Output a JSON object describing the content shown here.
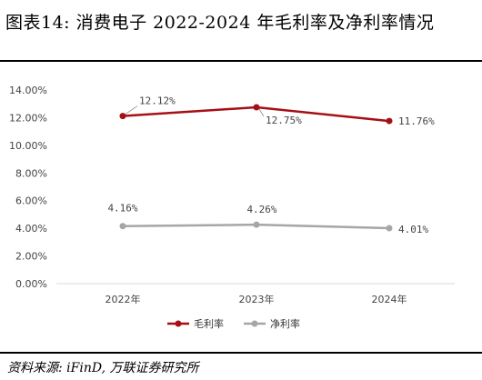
{
  "header": {
    "title": "图表14:  消费电子 2022-2024 年毛利率及净利率情况"
  },
  "footer": {
    "source": "资料来源: iFinD, 万联证券研究所"
  },
  "chart_data": {
    "type": "line",
    "title": "图表14:  消费电子 2022-2024 年毛利率及净利率情况",
    "categories": [
      "2022年",
      "2023年",
      "2024年"
    ],
    "ylim": [
      0,
      14
    ],
    "yticks": [
      "14.00%",
      "12.00%",
      "10.00%",
      "8.00%",
      "6.00%",
      "4.00%",
      "2.00%",
      "0.00%"
    ],
    "ytick_values": [
      14,
      12,
      10,
      8,
      6,
      4,
      2,
      0
    ],
    "grid": false,
    "legend": "bottom-center",
    "series": [
      {
        "name": "毛利率",
        "values": [
          12.12,
          12.75,
          11.76
        ],
        "labels": [
          "12.12%",
          "12.75%",
          "11.76%"
        ],
        "color": "#A50F15"
      },
      {
        "name": "净利率",
        "values": [
          4.16,
          4.26,
          4.01
        ],
        "labels": [
          "4.16%",
          "4.26%",
          "4.01%"
        ],
        "color": "#A6A6A6"
      }
    ]
  }
}
